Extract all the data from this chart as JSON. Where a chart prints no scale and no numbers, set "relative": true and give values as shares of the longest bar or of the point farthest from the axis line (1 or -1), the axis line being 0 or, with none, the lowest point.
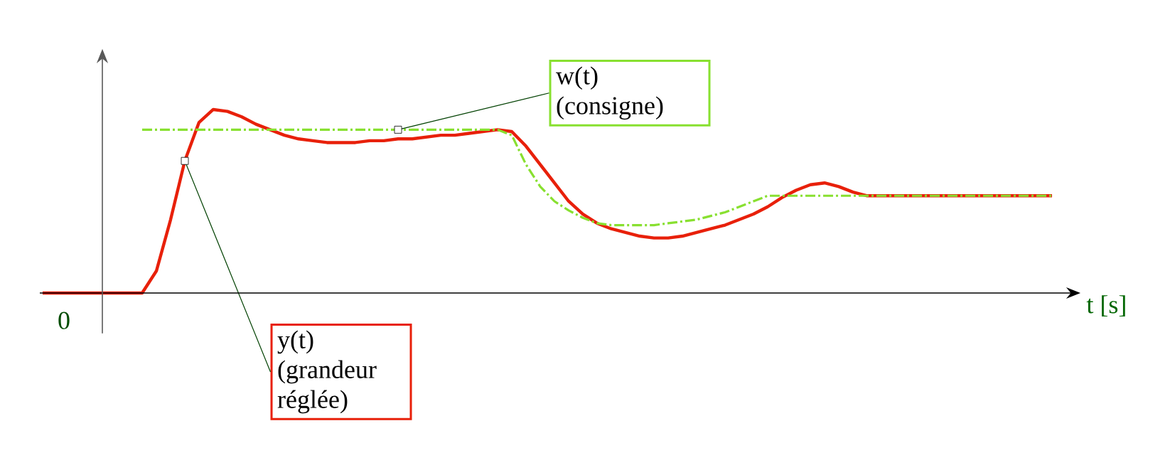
{
  "chart_data": {
    "type": "line",
    "relative": true,
    "xlabel": "t [s]",
    "annotations": [
      "0"
    ],
    "categories": [
      null,
      null,
      null,
      null,
      null,
      null,
      null,
      null,
      null,
      null,
      null,
      null,
      null,
      null,
      null,
      null,
      null,
      null,
      null,
      null,
      null,
      null,
      null,
      null,
      null,
      null,
      null,
      null,
      null,
      null,
      null,
      null,
      null,
      null,
      null,
      null,
      null,
      null,
      null,
      null,
      null,
      null,
      null,
      null,
      null,
      null,
      null,
      null,
      null,
      null,
      null,
      null,
      null,
      null,
      null,
      null,
      null,
      null,
      null,
      null,
      null,
      null,
      null,
      null,
      null,
      null,
      null,
      null,
      null,
      null,
      null,
      null
    ],
    "series": [
      {
        "name": "y(t) (grandeur réglée)",
        "color": "#e8200a",
        "line_style": "solid",
        "values": [
          0,
          0,
          0,
          0,
          0,
          0,
          0,
          0,
          0.12,
          0.4,
          0.72,
          0.93,
          1.0,
          0.99,
          0.96,
          0.92,
          0.89,
          0.86,
          0.84,
          0.83,
          0.82,
          0.82,
          0.82,
          0.83,
          0.83,
          0.84,
          0.84,
          0.85,
          0.86,
          0.86,
          0.87,
          0.88,
          0.89,
          0.88,
          0.8,
          0.7,
          0.6,
          0.5,
          0.43,
          0.38,
          0.35,
          0.33,
          0.31,
          0.3,
          0.3,
          0.31,
          0.33,
          0.35,
          0.37,
          0.4,
          0.43,
          0.47,
          0.52,
          0.56,
          0.59,
          0.6,
          0.58,
          0.55,
          0.53,
          0.53,
          0.53,
          0.53,
          0.53,
          0.53,
          0.53,
          0.53,
          0.53,
          0.53,
          0.53,
          0.53,
          0.53,
          0.53
        ]
      },
      {
        "name": "w(t) (consigne)",
        "color": "#88e030",
        "line_style": "dashed",
        "values": [
          null,
          null,
          null,
          null,
          null,
          null,
          null,
          0.89,
          0.89,
          0.89,
          0.89,
          0.89,
          0.89,
          0.89,
          0.89,
          0.89,
          0.89,
          0.89,
          0.89,
          0.89,
          0.89,
          0.89,
          0.89,
          0.89,
          0.89,
          0.89,
          0.89,
          0.89,
          0.89,
          0.89,
          0.89,
          0.89,
          0.89,
          0.86,
          0.7,
          0.58,
          0.5,
          0.45,
          0.41,
          0.38,
          0.37,
          0.37,
          0.37,
          0.37,
          0.38,
          0.39,
          0.4,
          0.42,
          0.44,
          0.47,
          0.5,
          0.53,
          0.53,
          0.53,
          0.53,
          0.53,
          0.53,
          0.53,
          0.53,
          0.53,
          0.53,
          0.53,
          0.53,
          0.53,
          0.53,
          0.53,
          0.53,
          0.53,
          0.53,
          0.53,
          0.53,
          0.53
        ]
      }
    ]
  }
}
